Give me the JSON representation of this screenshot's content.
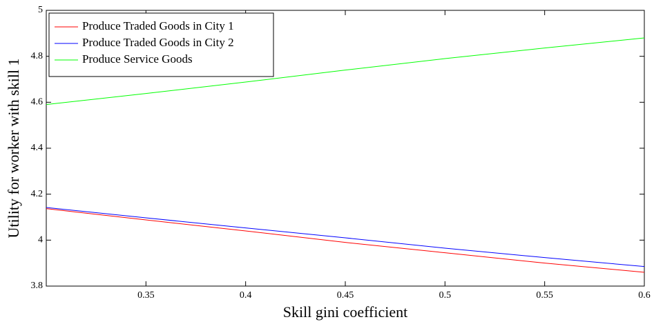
{
  "chart_data": {
    "type": "line",
    "xlabel": "Skill gini coefficient",
    "ylabel": "Utility for worker with skill 1",
    "x": [
      0.3,
      0.35,
      0.4,
      0.45,
      0.5,
      0.55,
      0.6
    ],
    "series": [
      {
        "name": "Produce Traded Goods in City 1",
        "color": "#ff0000",
        "values": [
          4.137,
          4.088,
          4.04,
          3.99,
          3.945,
          3.9,
          3.86
        ]
      },
      {
        "name": "Produce Traded Goods in City 2",
        "color": "#0000ff",
        "values": [
          4.142,
          4.097,
          4.053,
          4.01,
          3.965,
          3.924,
          3.885
        ]
      },
      {
        "name": "Produce Service Goods",
        "color": "#00ff00",
        "values": [
          4.59,
          4.638,
          4.688,
          4.74,
          4.79,
          4.836,
          4.88
        ]
      }
    ],
    "xlim": [
      0.3,
      0.6
    ],
    "xticks": [
      0.35,
      0.4,
      0.45,
      0.5,
      0.55,
      0.6
    ],
    "ylim": [
      3.8,
      5
    ],
    "yticks": [
      3.8,
      4,
      4.2,
      4.4,
      4.6,
      4.8,
      5
    ],
    "legend": "northwest",
    "grid": false
  }
}
